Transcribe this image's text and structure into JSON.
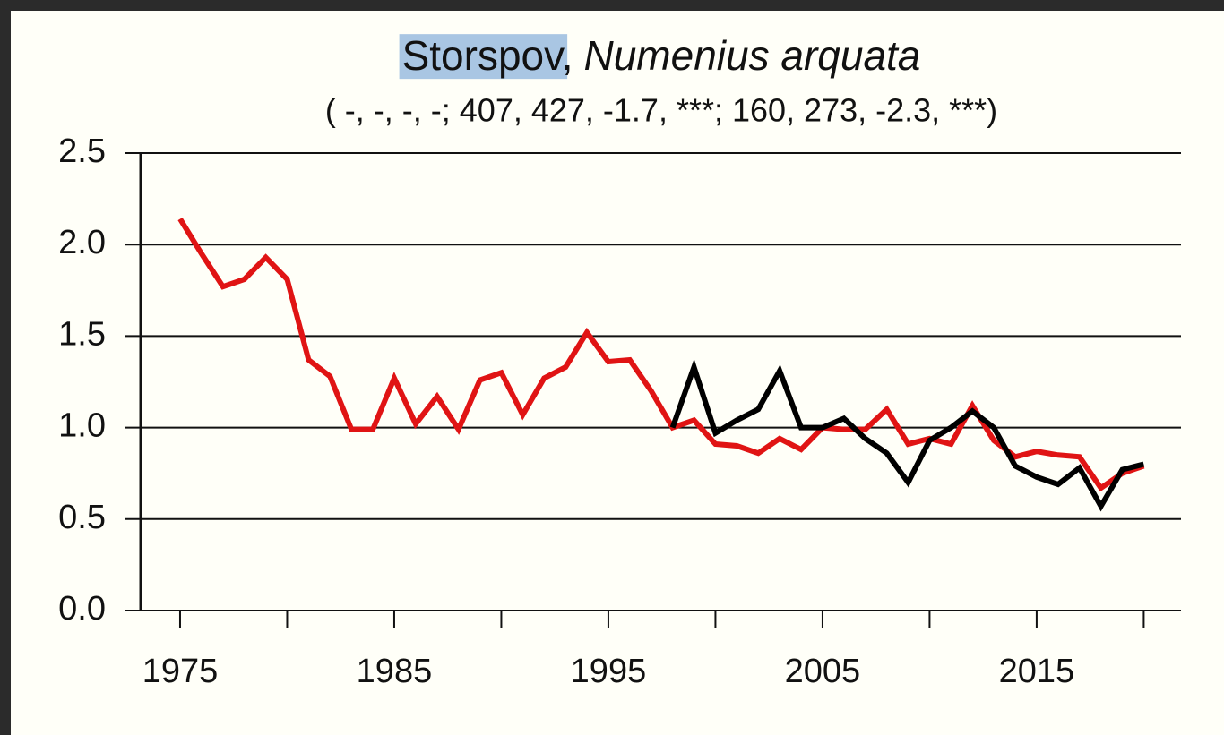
{
  "chart_data": {
    "type": "line",
    "title": {
      "name": "Storspov",
      "separator": ",",
      "latin": "Numenius arquata"
    },
    "subtitle": "( -, -, -, -; 407, 427, -1.7, ***; 160, 273, -2.3, ***)",
    "x": [
      1975,
      1976,
      1977,
      1978,
      1979,
      1980,
      1981,
      1982,
      1983,
      1984,
      1985,
      1986,
      1987,
      1988,
      1989,
      1990,
      1991,
      1992,
      1993,
      1994,
      1995,
      1996,
      1997,
      1998,
      1999,
      2000,
      2001,
      2002,
      2003,
      2004,
      2005,
      2006,
      2007,
      2008,
      2009,
      2010,
      2011,
      2012,
      2013,
      2014,
      2015,
      2016,
      2017,
      2018,
      2019,
      2020
    ],
    "series": [
      {
        "color": "#e01414",
        "values": [
          2.14,
          1.95,
          1.77,
          1.81,
          1.93,
          1.81,
          1.37,
          1.28,
          0.99,
          0.99,
          1.27,
          1.02,
          1.17,
          0.99,
          1.26,
          1.3,
          1.07,
          1.27,
          1.33,
          1.52,
          1.36,
          1.37,
          1.2,
          1.0,
          1.04,
          0.91,
          0.9,
          0.86,
          0.94,
          0.88,
          1.0,
          0.99,
          0.99,
          1.1,
          0.91,
          0.94,
          0.91,
          1.12,
          0.93,
          0.84,
          0.87,
          0.85,
          0.84,
          0.67,
          0.75,
          0.79
        ]
      },
      {
        "color": "#000000",
        "values": [
          null,
          null,
          null,
          null,
          null,
          null,
          null,
          null,
          null,
          null,
          null,
          null,
          null,
          null,
          null,
          null,
          null,
          null,
          null,
          null,
          null,
          null,
          null,
          1.0,
          1.33,
          0.97,
          1.04,
          1.1,
          1.31,
          1.0,
          1.0,
          1.05,
          0.94,
          0.86,
          0.7,
          0.93,
          1.0,
          1.09,
          1.0,
          0.79,
          0.73,
          0.69,
          0.78,
          0.57,
          0.77,
          0.8
        ]
      }
    ],
    "xlim": [
      1973.16,
      2021.74
    ],
    "xticks": [
      1975,
      1985,
      1995,
      2005,
      2015
    ],
    "xminorticks": [
      1980,
      1990,
      2000,
      2010,
      2020
    ],
    "ylim": [
      0,
      2.5
    ],
    "yticks": [
      {
        "value": 0,
        "label": "0.0"
      },
      {
        "value": 0.5,
        "label": "0.5"
      },
      {
        "value": 1,
        "label": "1.0"
      },
      {
        "value": 1.5,
        "label": "1.5"
      },
      {
        "value": 2,
        "label": "2.0"
      },
      {
        "value": 2.5,
        "label": "2.5"
      }
    ],
    "grid": true
  }
}
